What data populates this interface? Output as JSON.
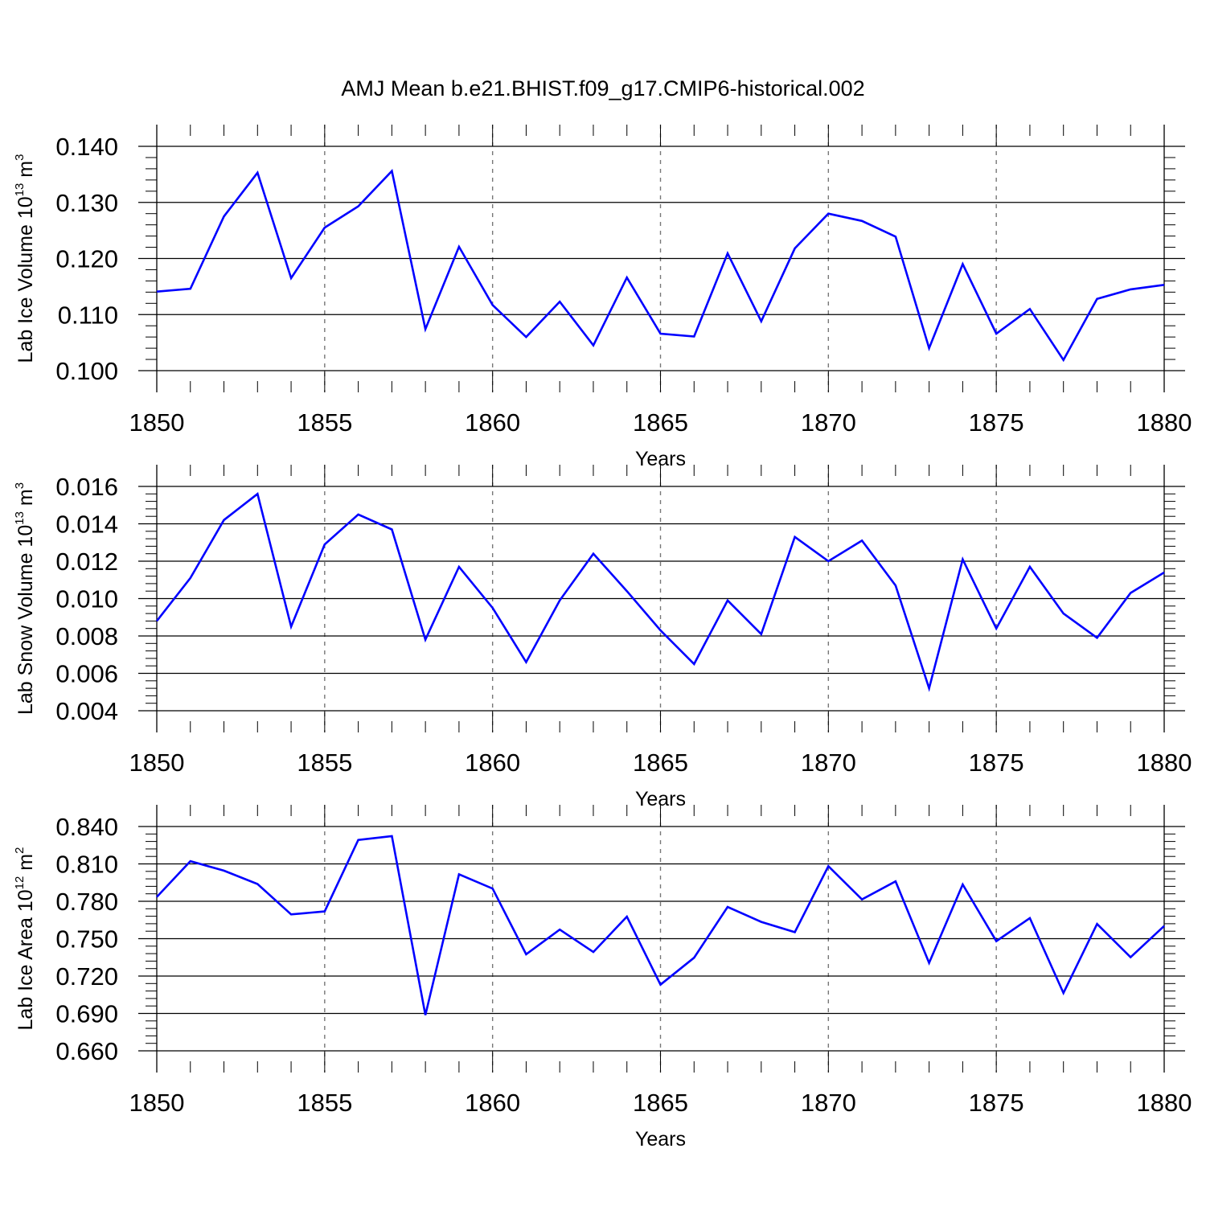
{
  "chart_data": {
    "type": "line",
    "title": "AMJ Mean b.e21.BHIST.f09_g17.CMIP6-historical.002",
    "line_color": "#0000ff",
    "grid": "dashed vertical lines every 5 years",
    "panels": [
      {
        "xlabel": "Years",
        "ylabel": {
          "main": "Lab Ice Volume 10",
          "exponent": "13",
          "unit": " m",
          "unit_exponent": "3"
        },
        "xlim": [
          1850,
          1880
        ],
        "ylim": [
          0.1,
          0.14
        ],
        "x_ticks": [
          "1850",
          "1855",
          "1860",
          "1865",
          "1870",
          "1875",
          "1880"
        ],
        "y_ticks": [
          "0.100",
          "0.110",
          "0.120",
          "0.130",
          "0.140"
        ],
        "x": [
          1850,
          1851,
          1852,
          1853,
          1854,
          1855,
          1856,
          1857,
          1858,
          1859,
          1860,
          1861,
          1862,
          1863,
          1864,
          1865,
          1866,
          1867,
          1868,
          1869,
          1870,
          1871,
          1872,
          1873,
          1874,
          1875,
          1876,
          1877,
          1878,
          1879,
          1880
        ],
        "values": [
          0.1141,
          0.1146,
          0.1275,
          0.1353,
          0.1165,
          0.1255,
          0.1293,
          0.1356,
          0.1074,
          0.1221,
          0.1117,
          0.106,
          0.1123,
          0.1045,
          0.1166,
          0.1066,
          0.1061,
          0.1209,
          0.1088,
          0.1218,
          0.128,
          0.1267,
          0.1239,
          0.104,
          0.119,
          0.1066,
          0.111,
          0.1019,
          0.1128,
          0.1145,
          0.1153
        ]
      },
      {
        "xlabel": "Years",
        "ylabel": {
          "main": "Lab Snow Volume 10",
          "exponent": "13",
          "unit": " m",
          "unit_exponent": "3"
        },
        "xlim": [
          1850,
          1880
        ],
        "ylim": [
          0.004,
          0.016
        ],
        "x_ticks": [
          "1850",
          "1855",
          "1860",
          "1865",
          "1870",
          "1875",
          "1880"
        ],
        "y_ticks": [
          "0.004",
          "0.006",
          "0.008",
          "0.010",
          "0.012",
          "0.014",
          "0.016"
        ],
        "x": [
          1850,
          1851,
          1852,
          1853,
          1854,
          1855,
          1856,
          1857,
          1858,
          1859,
          1860,
          1861,
          1862,
          1863,
          1864,
          1865,
          1866,
          1867,
          1868,
          1869,
          1870,
          1871,
          1872,
          1873,
          1874,
          1875,
          1876,
          1877,
          1878,
          1879,
          1880
        ],
        "values": [
          0.0088,
          0.0111,
          0.0142,
          0.0156,
          0.0085,
          0.0129,
          0.0145,
          0.0137,
          0.0078,
          0.0117,
          0.0095,
          0.0066,
          0.0099,
          0.0124,
          0.0104,
          0.0083,
          0.0065,
          0.0099,
          0.0081,
          0.0133,
          0.012,
          0.0131,
          0.0107,
          0.0052,
          0.0121,
          0.0084,
          0.0117,
          0.0092,
          0.0079,
          0.0103,
          0.0114
        ]
      },
      {
        "xlabel": "Years",
        "ylabel": {
          "main": "Lab Ice Area 10",
          "exponent": "12",
          "unit": " m",
          "unit_exponent": "2"
        },
        "xlim": [
          1850,
          1880
        ],
        "ylim": [
          0.66,
          0.84
        ],
        "x_ticks": [
          "1850",
          "1855",
          "1860",
          "1865",
          "1870",
          "1875",
          "1880"
        ],
        "y_ticks": [
          "0.660",
          "0.690",
          "0.720",
          "0.750",
          "0.780",
          "0.810",
          "0.840"
        ],
        "x": [
          1850,
          1851,
          1852,
          1853,
          1854,
          1855,
          1856,
          1857,
          1858,
          1859,
          1860,
          1861,
          1862,
          1863,
          1864,
          1865,
          1866,
          1867,
          1868,
          1869,
          1870,
          1871,
          1872,
          1873,
          1874,
          1875,
          1876,
          1877,
          1878,
          1879,
          1880
        ],
        "values": [
          0.7835,
          0.8122,
          0.8046,
          0.7939,
          0.7695,
          0.7719,
          0.8292,
          0.8323,
          0.6887,
          0.8017,
          0.7902,
          0.7375,
          0.7573,
          0.7393,
          0.7677,
          0.7131,
          0.7347,
          0.7755,
          0.7635,
          0.7552,
          0.8082,
          0.7815,
          0.796,
          0.7306,
          0.7935,
          0.748,
          0.7665,
          0.7064,
          0.7618,
          0.7351,
          0.7602
        ]
      }
    ]
  }
}
